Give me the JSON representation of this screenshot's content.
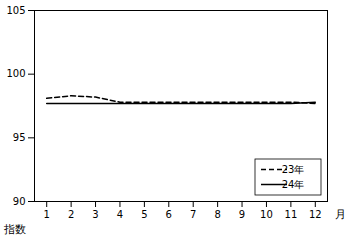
{
  "chart_data": {
    "type": "line",
    "xlabel": "月",
    "ylabel": "指数",
    "x": [
      1,
      2,
      3,
      4,
      5,
      6,
      7,
      8,
      9,
      10,
      11,
      12
    ],
    "series": [
      {
        "name": "23年",
        "color": "black",
        "line_style": "dashed",
        "values": [
          98.1,
          98.3,
          98.2,
          97.8,
          97.8,
          97.8,
          97.8,
          97.8,
          97.8,
          97.8,
          97.8,
          97.7
        ]
      },
      {
        "name": "24年",
        "color": "black",
        "line_style": "solid",
        "values": [
          97.7,
          97.7,
          97.7,
          97.7,
          97.7,
          97.7,
          97.7,
          97.7,
          97.7,
          97.7,
          97.7,
          97.8
        ]
      }
    ],
    "xlim": [
      0.5,
      12.5
    ],
    "xticks": [
      1,
      2,
      3,
      4,
      5,
      6,
      7,
      8,
      9,
      10,
      11,
      12
    ],
    "ylim": [
      90,
      105
    ],
    "yticks": [
      90,
      95,
      100,
      105
    ],
    "grid": false,
    "legend": "lower right"
  }
}
